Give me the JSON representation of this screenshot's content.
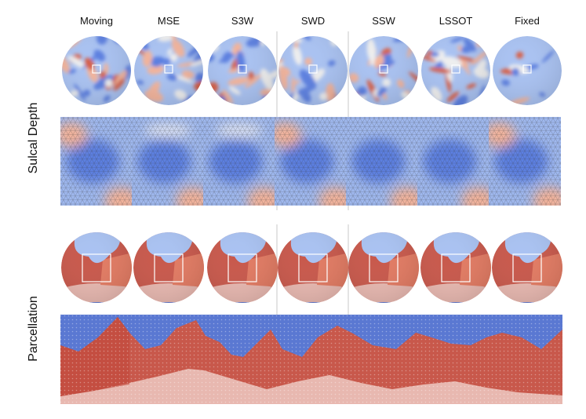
{
  "figure": {
    "columns": [
      "Moving",
      "MSE",
      "S3W",
      "SWD",
      "SSW",
      "LSSOT",
      "Fixed"
    ],
    "rows": [
      {
        "label": "Sulcal Depth",
        "kind": "heatmap"
      },
      {
        "label": "Parcellation",
        "kind": "parcellation"
      }
    ]
  },
  "colors": {
    "blue": "#5b7fe0",
    "light_blue": "#a9c2f2",
    "pale": "#eeeeee",
    "light_red": "#f2b39b",
    "red": "#d6614a",
    "dark_red": "#c2473a",
    "parcel_blue": "#5a78d2",
    "parcel_red": "#c8584b",
    "parcel_pink": "#e8b8b0"
  }
}
